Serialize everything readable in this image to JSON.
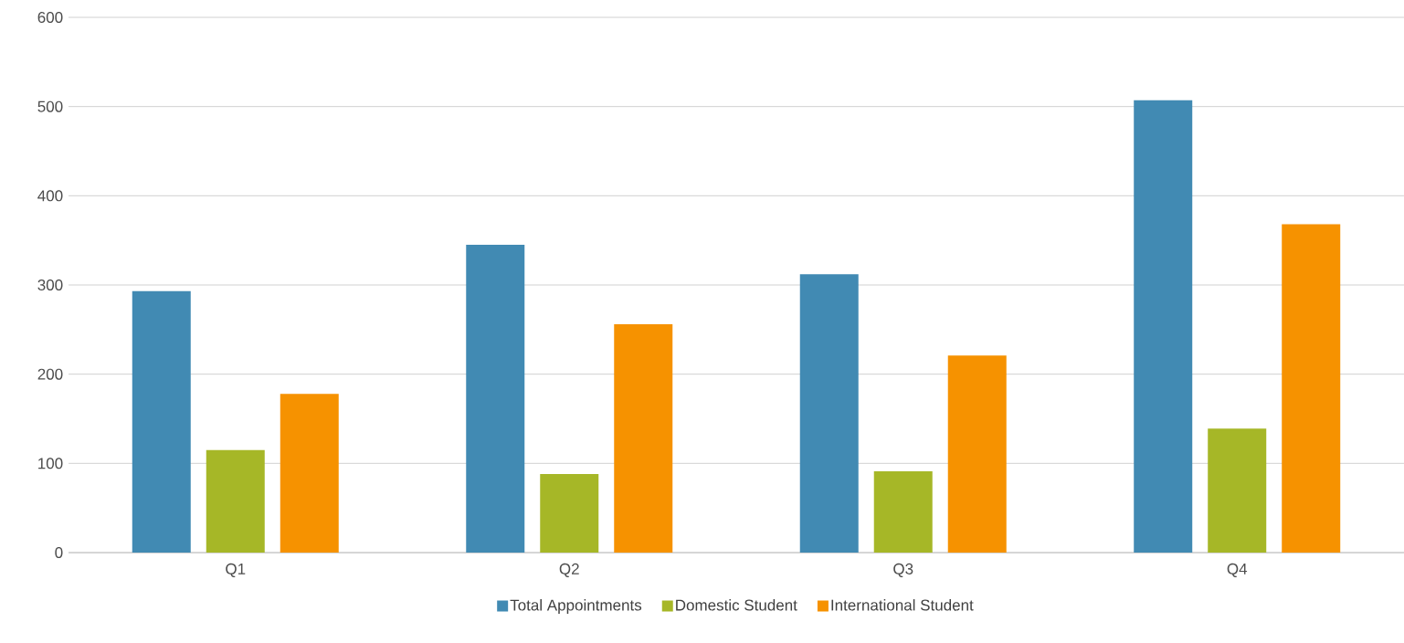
{
  "chart_data": {
    "type": "bar",
    "categories": [
      "Q1",
      "Q2",
      "Q3",
      "Q4"
    ],
    "series": [
      {
        "name": "Total Appointments",
        "color": "#418ab3",
        "values": [
          293,
          345,
          312,
          507
        ]
      },
      {
        "name": "Domestic Student",
        "color": "#a6b727",
        "values": [
          115,
          88,
          91,
          139
        ]
      },
      {
        "name": "International Student",
        "color": "#f69200",
        "values": [
          178,
          256,
          221,
          368
        ]
      }
    ],
    "ylim": [
      0,
      600
    ],
    "yticks": [
      0,
      100,
      200,
      300,
      400,
      500,
      600
    ],
    "grid": "y",
    "legend": "bottom"
  }
}
